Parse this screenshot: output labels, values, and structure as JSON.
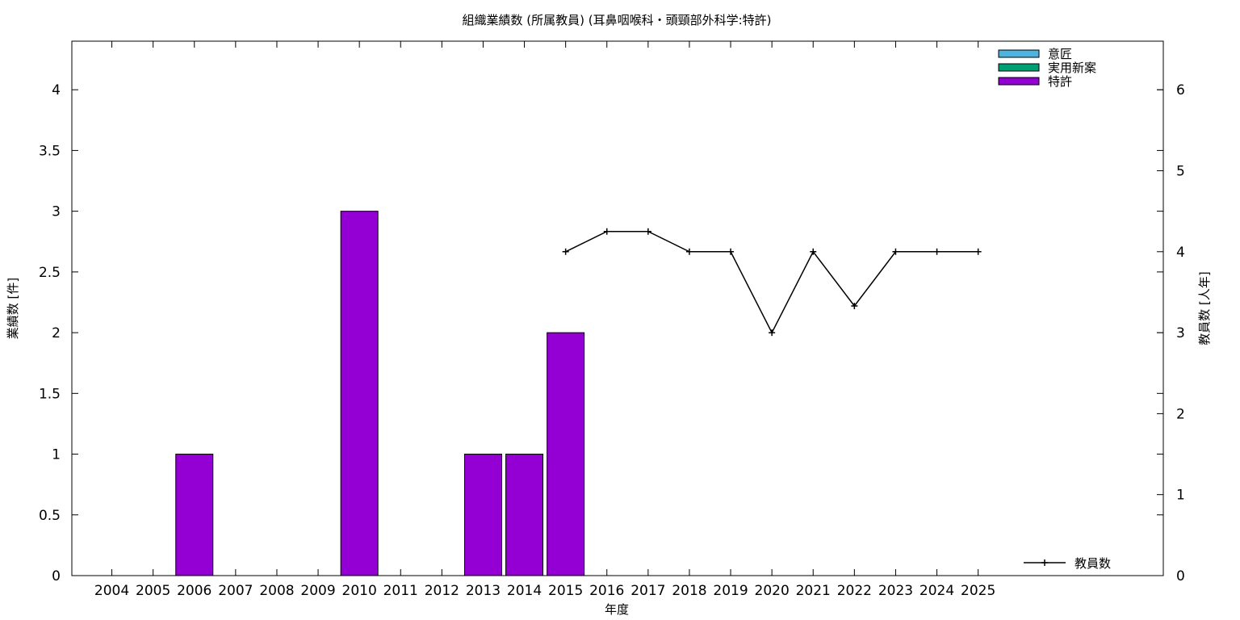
{
  "chart_data": {
    "type": "bar",
    "title": "組織業績数 (所属教員) (耳鼻咽喉科・頭頸部外科学:特許)",
    "xlabel": "年度",
    "ylabel": "業績数 [件]",
    "y2label": "教員数 [人年]",
    "categories": [
      "2004",
      "2005",
      "2006",
      "2007",
      "2008",
      "2009",
      "2010",
      "2011",
      "2012",
      "2013",
      "2014",
      "2015",
      "2016",
      "2017",
      "2018",
      "2019",
      "2020",
      "2021",
      "2022",
      "2023",
      "2024",
      "2025"
    ],
    "ylim": [
      0,
      4.4
    ],
    "y2lim": [
      0,
      6.6
    ],
    "yticks": [
      "0",
      "0.5",
      "1",
      "1.5",
      "2",
      "2.5",
      "3",
      "3.5",
      "4"
    ],
    "y2ticks": [
      "0",
      "1",
      "2",
      "3",
      "4",
      "5",
      "6"
    ],
    "grid": false,
    "legend_position": "top-right",
    "series": [
      {
        "name": "意匠",
        "color": "#4fb3e0",
        "values": [
          0,
          0,
          0,
          0,
          0,
          0,
          0,
          0,
          0,
          0,
          0,
          0,
          0,
          0,
          0,
          0,
          0,
          0,
          0,
          0,
          0,
          0
        ]
      },
      {
        "name": "実用新案",
        "color": "#009e73",
        "values": [
          0,
          0,
          0,
          0,
          0,
          0,
          0,
          0,
          0,
          0,
          0,
          0,
          0,
          0,
          0,
          0,
          0,
          0,
          0,
          0,
          0,
          0
        ]
      },
      {
        "name": "特許",
        "color": "#9400d3",
        "values": [
          0,
          0,
          1,
          0,
          0,
          0,
          3,
          0,
          0,
          1,
          1,
          2,
          0,
          0,
          0,
          0,
          0,
          0,
          0,
          0,
          0,
          0
        ]
      }
    ],
    "line_series": {
      "name": "教員数",
      "color": "#000000",
      "axis": "right",
      "x": [
        "2015",
        "2016",
        "2017",
        "2018",
        "2019",
        "2020",
        "2021",
        "2022",
        "2023",
        "2024",
        "2025"
      ],
      "values": [
        4,
        4.25,
        4.25,
        4,
        4,
        3,
        4,
        3.33,
        4,
        4,
        4
      ]
    }
  }
}
